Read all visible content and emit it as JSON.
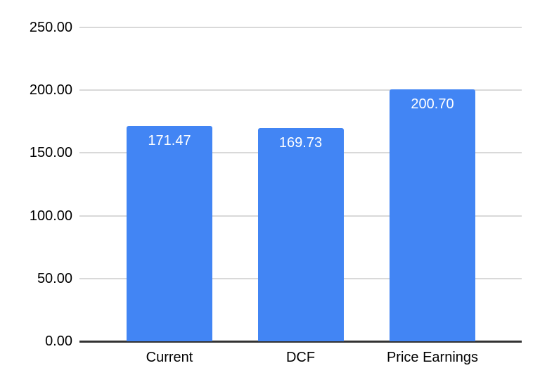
{
  "chart_data": {
    "type": "bar",
    "categories": [
      "Current",
      "DCF",
      "Price Earnings"
    ],
    "values": [
      171.47,
      169.73,
      200.7
    ],
    "data_labels": [
      "171.47",
      "169.73",
      "200.70"
    ],
    "y_ticks": [
      {
        "value": 0,
        "label": "0.00"
      },
      {
        "value": 50,
        "label": "50.00"
      },
      {
        "value": 100,
        "label": "100.00"
      },
      {
        "value": 150,
        "label": "150.00"
      },
      {
        "value": 200,
        "label": "200.00"
      },
      {
        "value": 250,
        "label": "250.00"
      }
    ],
    "ylim": [
      0,
      250
    ],
    "title": "",
    "xlabel": "",
    "ylabel": "",
    "grid": true,
    "legend": "none",
    "colors": {
      "bar": "#4285F4",
      "data_label": "#FFFFFF",
      "axis_text": "#000000",
      "gridline": "#D9D9D9",
      "baseline": "#333333",
      "background": "#FFFFFF"
    }
  }
}
